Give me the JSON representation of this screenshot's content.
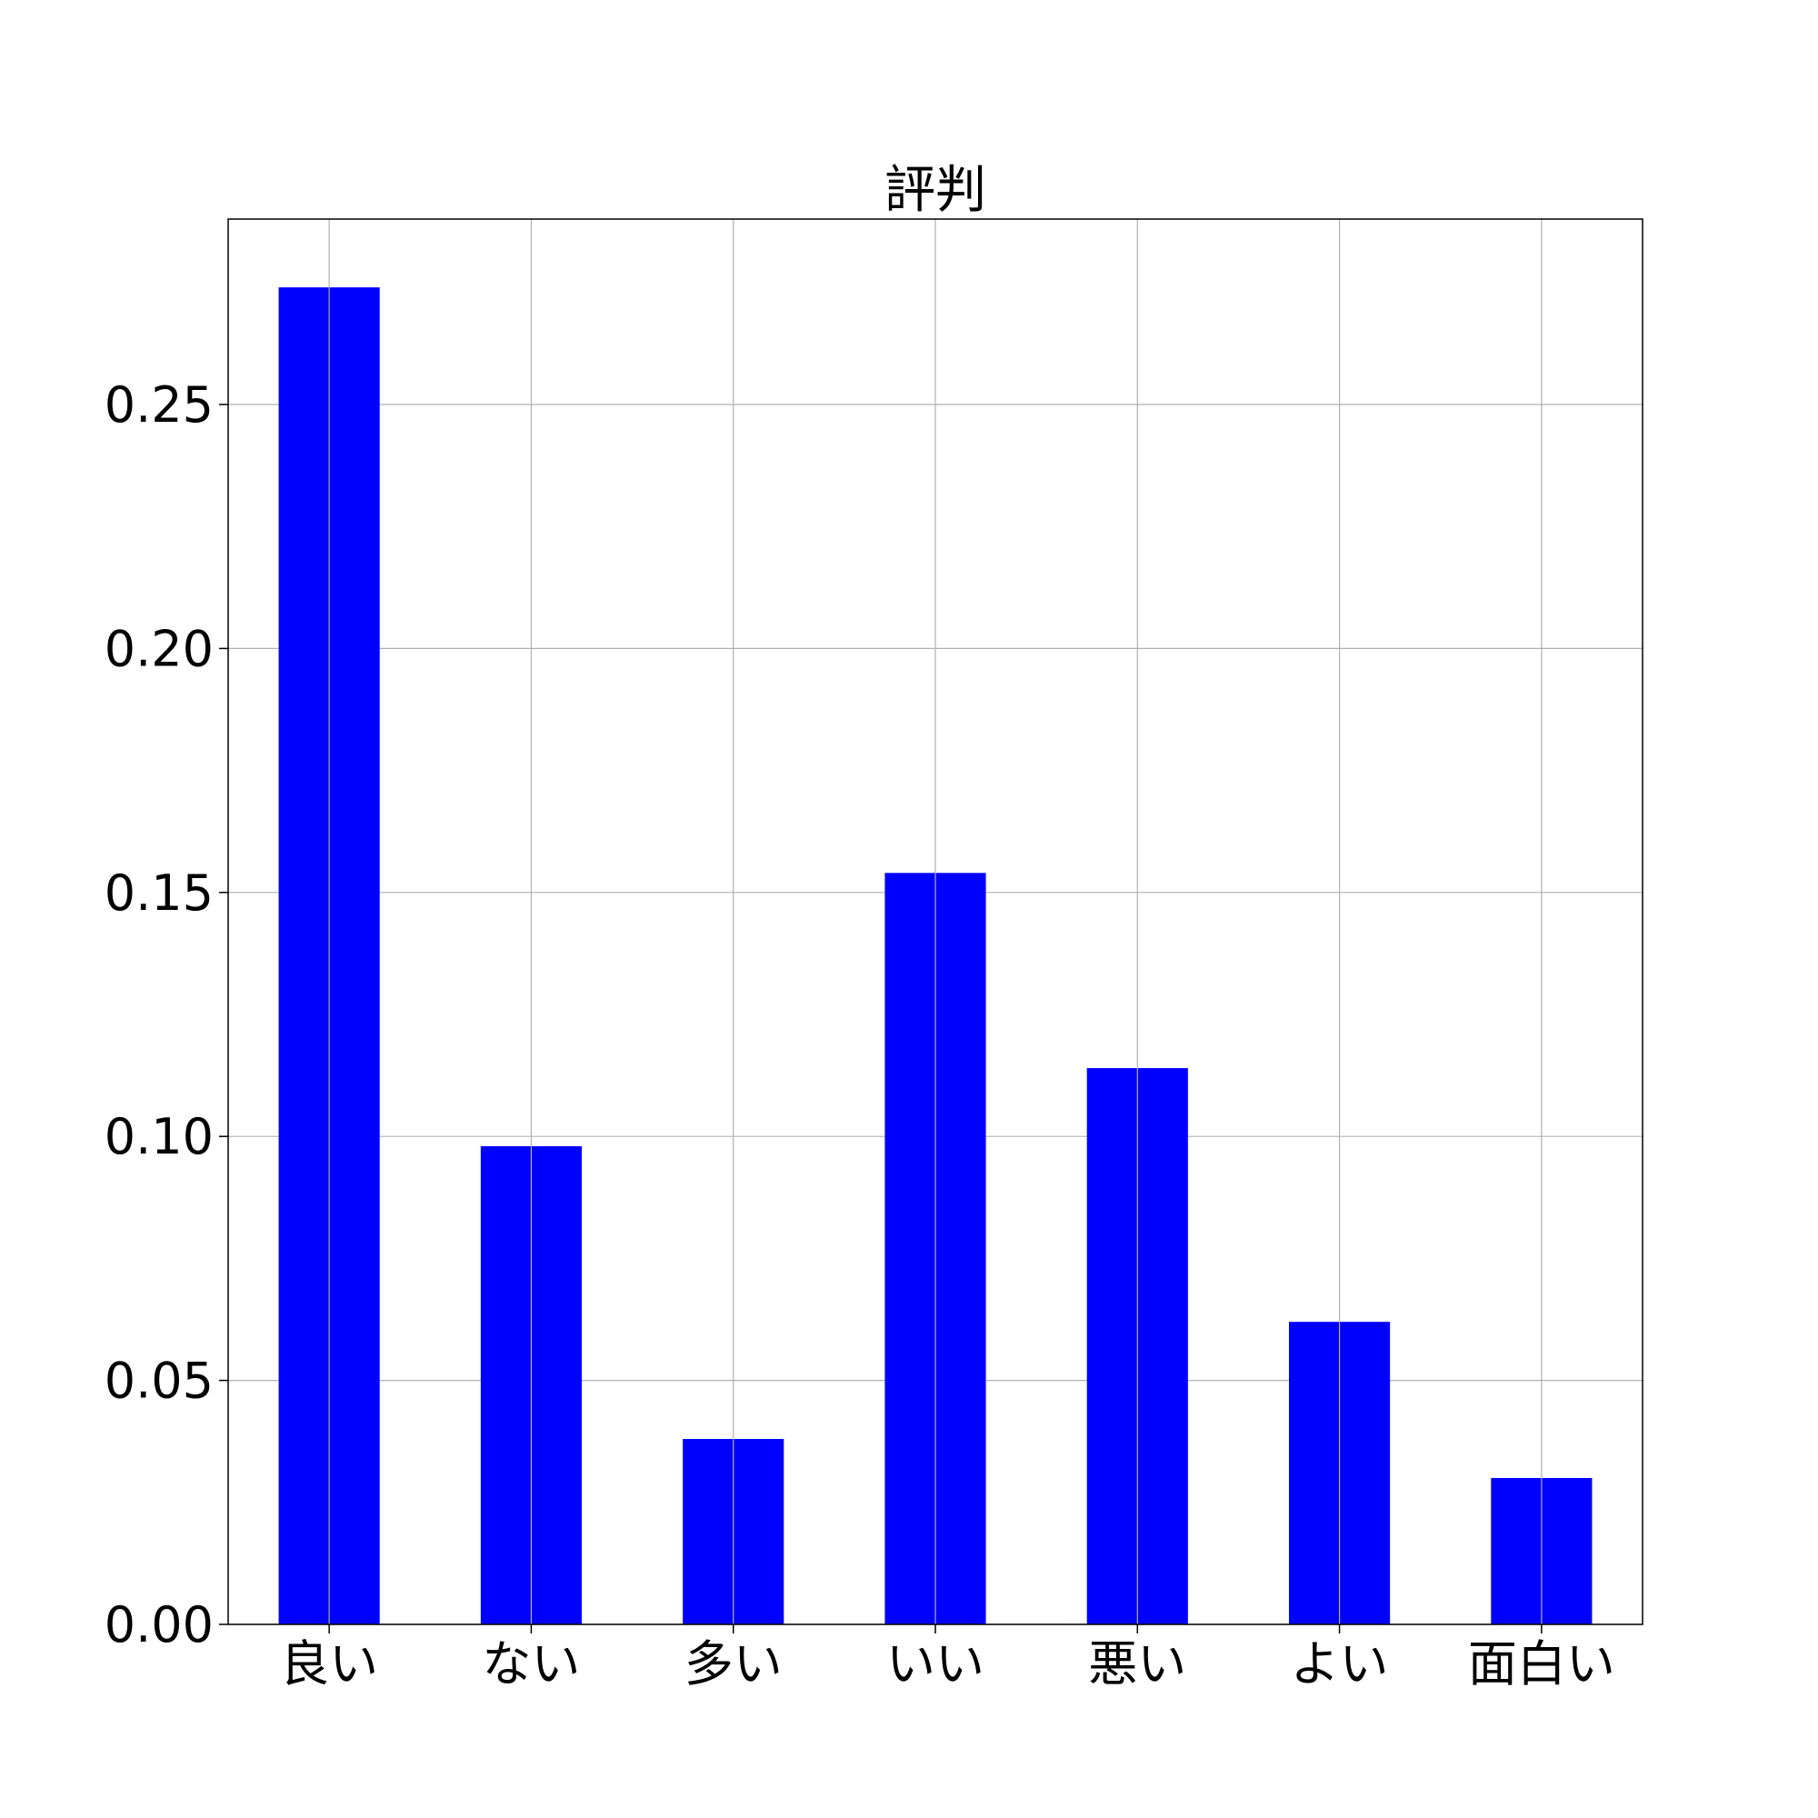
{
  "chart_data": {
    "type": "bar",
    "title": "評判",
    "xlabel": "",
    "ylabel": "",
    "categories": [
      "良い",
      "ない",
      "多い",
      "いい",
      "悪い",
      "よい",
      "面白い"
    ],
    "values": [
      0.274,
      0.098,
      0.038,
      0.154,
      0.114,
      0.062,
      0.03
    ],
    "ylim": [
      0,
      0.288
    ],
    "yticks": [
      "0.00",
      "0.05",
      "0.10",
      "0.15",
      "0.20",
      "0.25"
    ],
    "grid": true,
    "bar_color": "#0000ff",
    "grid_color": "#b0b0b0"
  }
}
